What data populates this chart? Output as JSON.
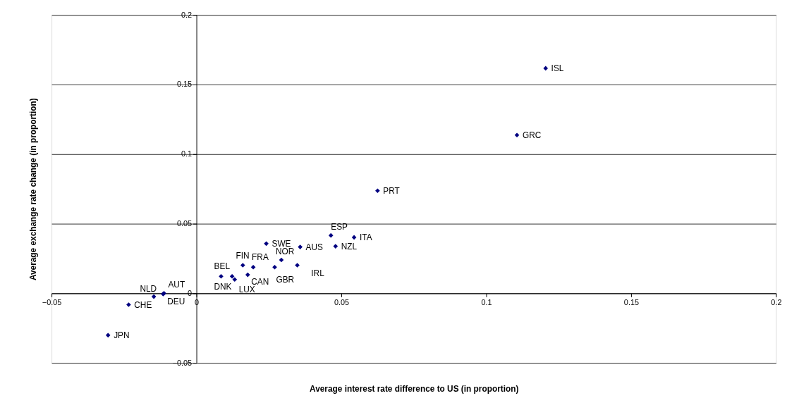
{
  "chart_data": {
    "type": "scatter",
    "xlabel": "Average interest rate difference to US (in proportion)",
    "ylabel": "Average exchange rate change (in proportion)",
    "x": [
      -0.0305,
      -0.0234,
      -0.0147,
      -0.0112,
      -0.0115,
      0.0085,
      0.0123,
      0.0132,
      0.016,
      0.0177,
      0.0196,
      0.0241,
      0.027,
      0.0293,
      0.0348,
      0.0358,
      0.0464,
      0.048,
      0.0544,
      0.0625,
      0.1106,
      0.1205
    ],
    "series": [
      {
        "color": "#000080",
        "values": [
          -0.0301,
          -0.0082,
          -0.0024,
          0.0,
          -0.0005,
          0.0122,
          0.0122,
          0.0099,
          0.0202,
          0.0133,
          0.0188,
          0.0357,
          0.0188,
          0.024,
          0.0202,
          0.0333,
          0.0416,
          0.0338,
          0.0402,
          0.0737,
          0.1137,
          0.1617
        ],
        "value_labels": [
          "JPN",
          "CHE",
          "NLD",
          "AUT",
          "DEU",
          "BEL",
          "DNK",
          "LUX",
          "FIN",
          "CAN",
          "FRA",
          "SWE",
          "GBR",
          "NOR",
          "IRL",
          "AUS",
          "ESP",
          "NZL",
          "ITA",
          "PRT",
          "GRC",
          "ISL"
        ]
      }
    ],
    "xlim": [
      -0.05,
      0.2
    ],
    "xticks": [
      -0.05,
      0,
      0.05,
      0.1,
      0.15,
      0.2
    ],
    "ylim": [
      -0.05,
      0.2
    ],
    "yticks": [
      -0.05,
      0,
      0.05,
      0.1,
      0.15,
      0.2
    ],
    "grid": "y",
    "marker": "diamond"
  }
}
